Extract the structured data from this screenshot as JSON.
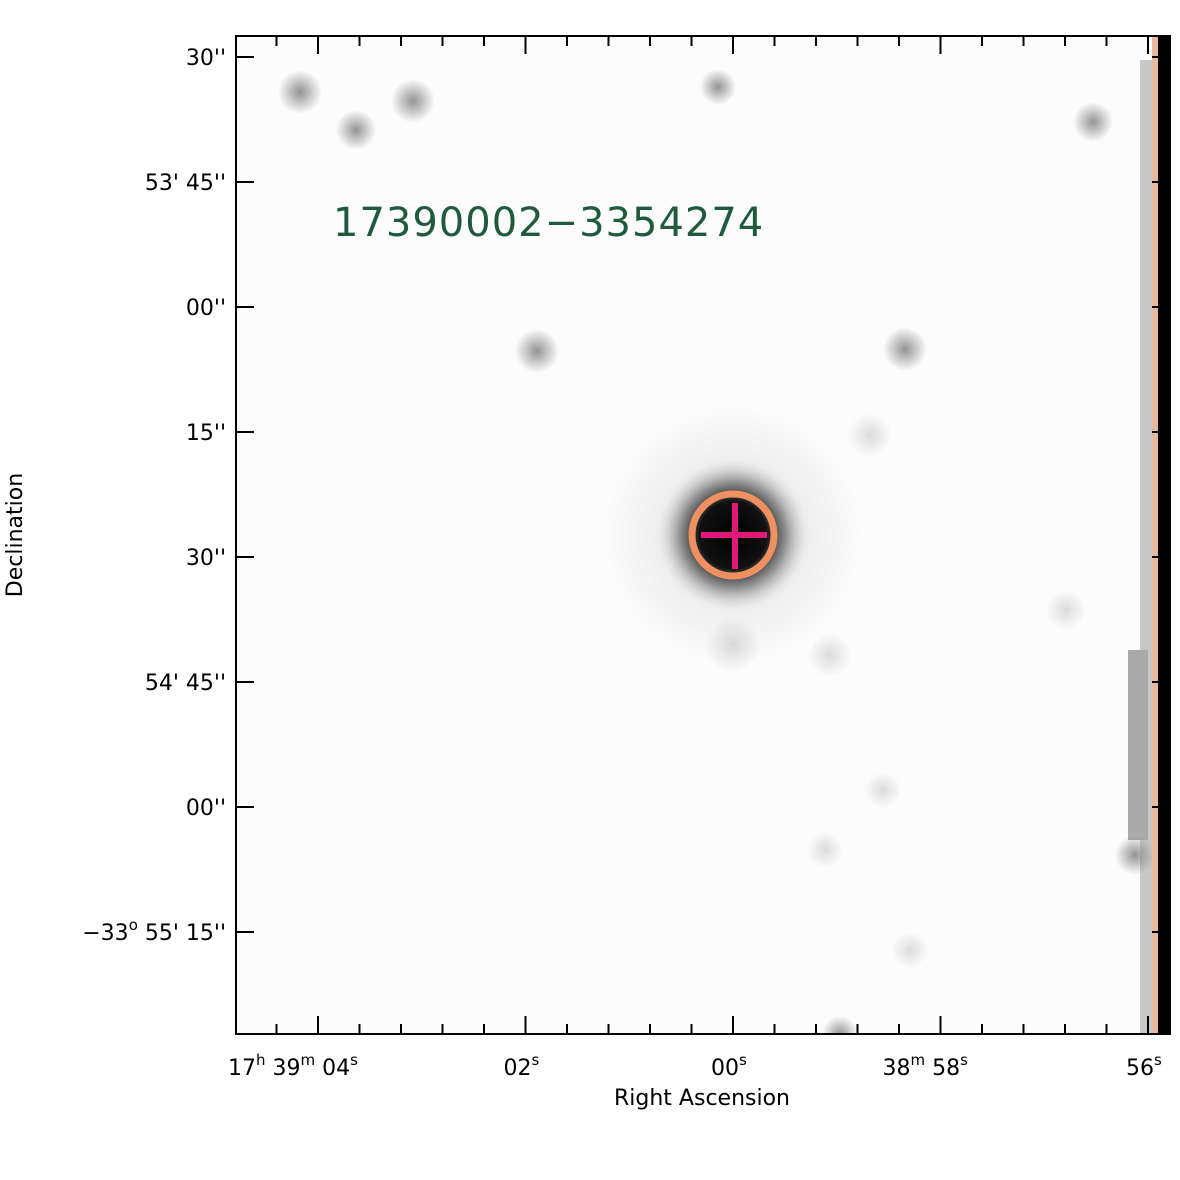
{
  "plot": {
    "object_label": "17390002−3354274",
    "x_axis_label": "Right Ascension",
    "y_axis_label": "Declination",
    "x_tick_labels": [
      [
        "17",
        "h",
        " 39",
        "m",
        " 04",
        "s"
      ],
      [
        "02",
        "s"
      ],
      [
        "00",
        "s"
      ],
      [
        "38",
        "m",
        " 58",
        "s"
      ],
      [
        "56",
        "s"
      ]
    ],
    "y_tick_labels": [
      [
        "30''"
      ],
      [
        "53' 45''"
      ],
      [
        "00''"
      ],
      [
        "15''"
      ],
      [
        "30''"
      ],
      [
        "54' 45''"
      ],
      [
        "00''"
      ],
      [
        "−33",
        "o",
        " 55' 15''"
      ]
    ]
  }
}
